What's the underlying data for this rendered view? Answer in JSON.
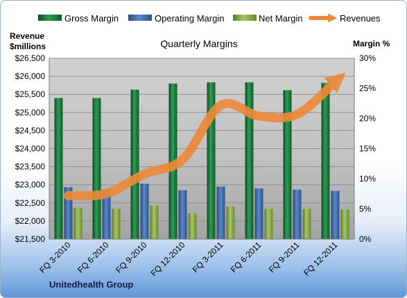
{
  "colors": {
    "gross_margin": "#1f7a3f",
    "operating_margin": "#3d6fb0",
    "net_margin": "#8db04a",
    "revenues": "#ec8a3a"
  },
  "chart_data": {
    "type": "bar",
    "title": "Quarterly Margins",
    "company": "Unitedhealth Group",
    "left_axis_label": [
      "Revenue",
      "$millions"
    ],
    "right_axis_label": "Margin %",
    "categories": [
      "FQ 3-2010",
      "FQ 6-2010",
      "FQ 9-2010",
      "FQ 12-2010",
      "FQ 3-2011",
      "FQ 6-2011",
      "FQ 9-2011",
      "FQ 12-2011"
    ],
    "left_ylim": [
      21500,
      26500
    ],
    "left_yticks": [
      "$21,500",
      "$22,000",
      "$22,500",
      "$23,000",
      "$23,500",
      "$24,000",
      "$24,500",
      "$25,000",
      "$25,500",
      "$26,000",
      "$26,500"
    ],
    "right_ylim": [
      0,
      30
    ],
    "right_yticks": [
      "0%",
      "5%",
      "10%",
      "15%",
      "20%",
      "25%",
      "30%"
    ],
    "legend": [
      "Gross Margin",
      "Operating Margin",
      "Net Margin",
      "Revenues"
    ],
    "legend_position": "top",
    "grid": true,
    "series": [
      {
        "name": "Gross Margin",
        "type": "bar",
        "axis": "right",
        "values": [
          23.4,
          23.4,
          24.8,
          25.8,
          26.0,
          26.0,
          24.7,
          25.9
        ]
      },
      {
        "name": "Operating Margin",
        "type": "bar",
        "axis": "right",
        "values": [
          8.6,
          8.2,
          9.2,
          8.1,
          8.7,
          8.4,
          8.2,
          8.0
        ]
      },
      {
        "name": "Net Margin",
        "type": "bar",
        "axis": "right",
        "values": [
          5.2,
          5.0,
          5.6,
          4.3,
          5.4,
          5.0,
          5.0,
          4.9
        ]
      },
      {
        "name": "Revenues",
        "type": "line",
        "axis": "left",
        "values": [
          22700,
          22760,
          23300,
          23700,
          25200,
          24900,
          24950,
          25850
        ]
      }
    ]
  }
}
